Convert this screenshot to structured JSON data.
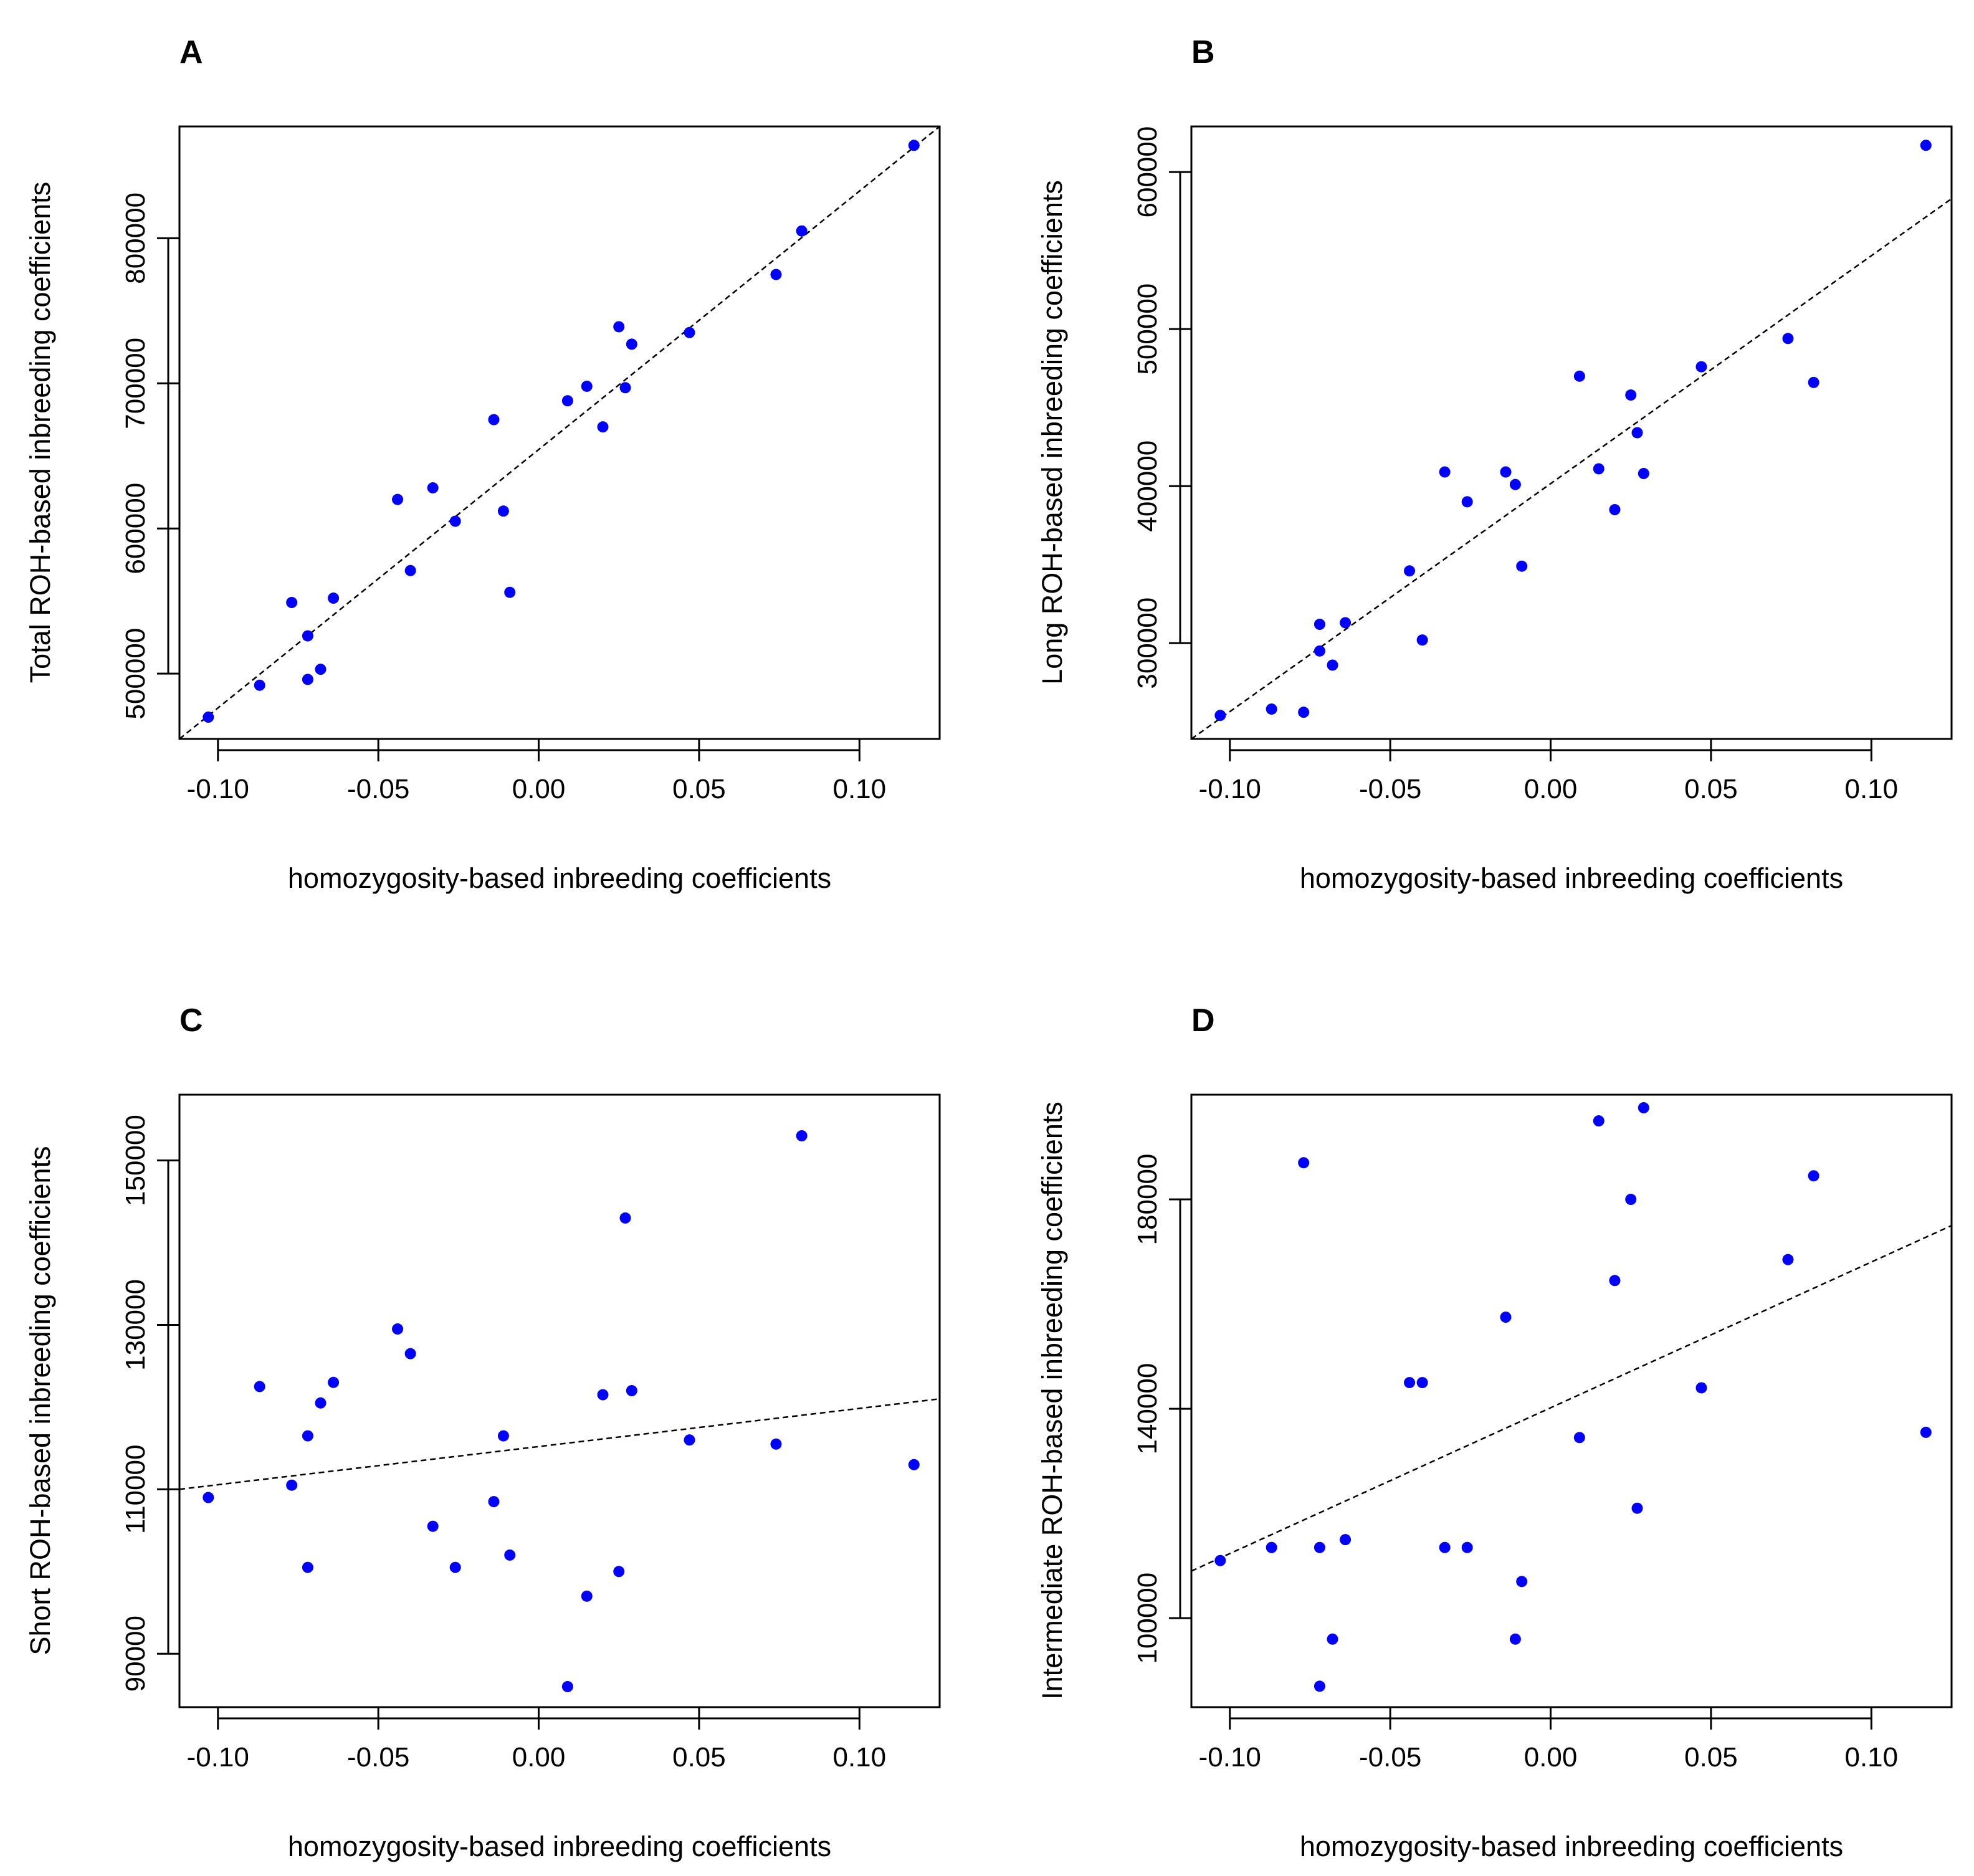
{
  "figure": {
    "background": "#ffffff",
    "point_color": "#0000ff"
  },
  "chart_data": [
    {
      "panel": "A",
      "type": "scatter",
      "title": "",
      "xlabel": "homozygosity-based inbreeding coefficients",
      "ylabel": "Total ROH-based inbreeding coefficients",
      "xlim": [
        -0.112,
        0.125
      ],
      "ylim": [
        455000,
        877000
      ],
      "xticks": [
        -0.1,
        -0.05,
        0.0,
        0.05,
        0.1
      ],
      "xtick_labels": [
        "-0.10",
        "-0.05",
        "0.00",
        "0.05",
        "0.10"
      ],
      "yticks": [
        500000,
        600000,
        700000,
        800000
      ],
      "ytick_labels": [
        "500000",
        "600000",
        "700000",
        "800000"
      ],
      "points": [
        [
          -0.103,
          470000
        ],
        [
          -0.087,
          492000
        ],
        [
          -0.077,
          549000
        ],
        [
          -0.072,
          526000
        ],
        [
          -0.072,
          496000
        ],
        [
          -0.068,
          503000
        ],
        [
          -0.064,
          552000
        ],
        [
          -0.044,
          620000
        ],
        [
          -0.04,
          571000
        ],
        [
          -0.033,
          628000
        ],
        [
          -0.026,
          605000
        ],
        [
          -0.014,
          675000
        ],
        [
          -0.011,
          612000
        ],
        [
          -0.009,
          556000
        ],
        [
          0.009,
          688000
        ],
        [
          0.015,
          698000
        ],
        [
          0.02,
          670000
        ],
        [
          0.025,
          739000
        ],
        [
          0.027,
          697000
        ],
        [
          0.029,
          727000
        ],
        [
          0.047,
          735000
        ],
        [
          0.074,
          775000
        ],
        [
          0.082,
          805000
        ],
        [
          0.117,
          864000
        ]
      ],
      "fit_line": {
        "x0": -0.112,
        "y0": 455000,
        "x1": 0.125,
        "y1": 877000
      }
    },
    {
      "panel": "B",
      "type": "scatter",
      "title": "",
      "xlabel": "homozygosity-based inbreeding coefficients",
      "ylabel": "Long ROH-based inbreeding coefficients",
      "xlim": [
        -0.112,
        0.125
      ],
      "ylim": [
        239000,
        629000
      ],
      "xticks": [
        -0.1,
        -0.05,
        0.0,
        0.05,
        0.1
      ],
      "xtick_labels": [
        "-0.10",
        "-0.05",
        "0.00",
        "0.05",
        "0.10"
      ],
      "yticks": [
        300000,
        400000,
        500000,
        600000
      ],
      "ytick_labels": [
        "300000",
        "400000",
        "500000",
        "600000"
      ],
      "points": [
        [
          -0.103,
          254000
        ],
        [
          -0.087,
          258000
        ],
        [
          -0.077,
          256000
        ],
        [
          -0.072,
          312000
        ],
        [
          -0.072,
          295000
        ],
        [
          -0.068,
          286000
        ],
        [
          -0.064,
          313000
        ],
        [
          -0.044,
          346000
        ],
        [
          -0.04,
          302000
        ],
        [
          -0.033,
          409000
        ],
        [
          -0.026,
          390000
        ],
        [
          -0.014,
          409000
        ],
        [
          -0.011,
          401000
        ],
        [
          -0.009,
          349000
        ],
        [
          0.009,
          470000
        ],
        [
          0.015,
          411000
        ],
        [
          0.02,
          385000
        ],
        [
          0.025,
          458000
        ],
        [
          0.027,
          434000
        ],
        [
          0.029,
          408000
        ],
        [
          0.047,
          476000
        ],
        [
          0.074,
          494000
        ],
        [
          0.082,
          466000
        ],
        [
          0.117,
          617000
        ]
      ],
      "fit_line": {
        "x0": -0.112,
        "y0": 239000,
        "x1": 0.125,
        "y1": 583000
      }
    },
    {
      "panel": "C",
      "type": "scatter",
      "title": "",
      "xlabel": "homozygosity-based inbreeding coefficients",
      "ylabel": "Short ROH-based inbreeding coefficients",
      "xlim": [
        -0.112,
        0.125
      ],
      "ylim": [
        83500,
        158000
      ],
      "xticks": [
        -0.1,
        -0.05,
        0.0,
        0.05,
        0.1
      ],
      "xtick_labels": [
        "-0.10",
        "-0.05",
        "0.00",
        "0.05",
        "0.10"
      ],
      "yticks": [
        90000,
        110000,
        130000,
        150000
      ],
      "ytick_labels": [
        "90000",
        "110000",
        "130000",
        "150000"
      ],
      "points": [
        [
          -0.103,
          109000
        ],
        [
          -0.087,
          122500
        ],
        [
          -0.077,
          110500
        ],
        [
          -0.072,
          116500
        ],
        [
          -0.072,
          100500
        ],
        [
          -0.068,
          120500
        ],
        [
          -0.064,
          123000
        ],
        [
          -0.044,
          129500
        ],
        [
          -0.04,
          126500
        ],
        [
          -0.033,
          105500
        ],
        [
          -0.026,
          100500
        ],
        [
          -0.014,
          108500
        ],
        [
          -0.011,
          116500
        ],
        [
          -0.009,
          102000
        ],
        [
          0.009,
          86000
        ],
        [
          0.015,
          97000
        ],
        [
          0.02,
          121500
        ],
        [
          0.025,
          100000
        ],
        [
          0.027,
          143000
        ],
        [
          0.029,
          122000
        ],
        [
          0.047,
          116000
        ],
        [
          0.074,
          115500
        ],
        [
          0.082,
          153000
        ],
        [
          0.117,
          113000
        ]
      ],
      "fit_line": {
        "x0": -0.112,
        "y0": 110000,
        "x1": 0.125,
        "y1": 121000
      }
    },
    {
      "panel": "D",
      "type": "scatter",
      "title": "",
      "xlabel": "homozygosity-based inbreeding coefficients",
      "ylabel": "Intermediate ROH-based inbreeding coefficients",
      "xlim": [
        -0.112,
        0.125
      ],
      "ylim": [
        83000,
        200000
      ],
      "xticks": [
        -0.1,
        -0.05,
        0.0,
        0.05,
        0.1
      ],
      "xtick_labels": [
        "-0.10",
        "-0.05",
        "0.00",
        "0.05",
        "0.10"
      ],
      "yticks": [
        100000,
        140000,
        180000
      ],
      "ytick_labels": [
        "100000",
        "140000",
        "180000"
      ],
      "points": [
        [
          -0.103,
          111000
        ],
        [
          -0.087,
          113500
        ],
        [
          -0.077,
          187000
        ],
        [
          -0.072,
          113500
        ],
        [
          -0.072,
          87000
        ],
        [
          -0.068,
          96000
        ],
        [
          -0.064,
          115000
        ],
        [
          -0.044,
          145000
        ],
        [
          -0.04,
          145000
        ],
        [
          -0.033,
          113500
        ],
        [
          -0.026,
          113500
        ],
        [
          -0.014,
          157500
        ],
        [
          -0.011,
          96000
        ],
        [
          -0.009,
          107000
        ],
        [
          0.009,
          134500
        ],
        [
          0.015,
          195000
        ],
        [
          0.02,
          164500
        ],
        [
          0.025,
          180000
        ],
        [
          0.027,
          121000
        ],
        [
          0.029,
          197500
        ],
        [
          0.047,
          144000
        ],
        [
          0.074,
          168500
        ],
        [
          0.082,
          184500
        ],
        [
          0.117,
          135500
        ]
      ],
      "fit_line": {
        "x0": -0.112,
        "y0": 109000,
        "x1": 0.125,
        "y1": 175000
      }
    }
  ]
}
